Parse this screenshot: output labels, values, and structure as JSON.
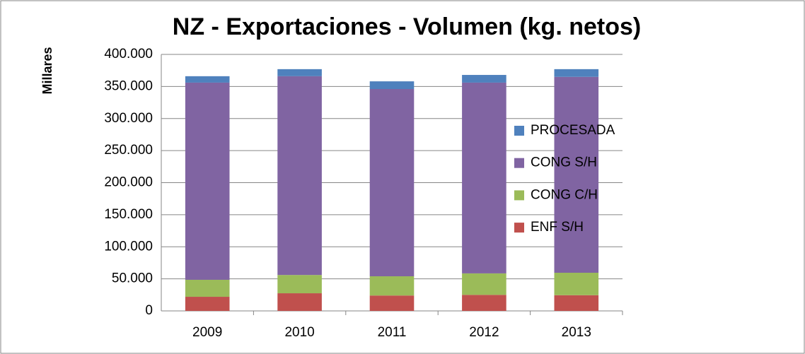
{
  "chart_data": {
    "type": "stacked_bar",
    "title": "NZ - Exportaciones - Volumen (kg. netos)",
    "y_axis_label": "Millares",
    "categories": [
      "2009",
      "2010",
      "2011",
      "2012",
      "2013"
    ],
    "series": [
      {
        "name": "ENF S/H",
        "color": "#c0504d",
        "values": [
          22000,
          27500,
          24000,
          25000,
          24500
        ]
      },
      {
        "name": "CONG C/H",
        "color": "#9bbb59",
        "values": [
          26500,
          28500,
          30000,
          33500,
          35000
        ]
      },
      {
        "name": "CONG S/H",
        "color": "#8064a2",
        "values": [
          307500,
          310000,
          292000,
          297500,
          305500
        ]
      },
      {
        "name": "PROCESADA",
        "color": "#4f81bd",
        "values": [
          10000,
          11000,
          12000,
          12000,
          12000
        ]
      }
    ],
    "ylim": [
      0,
      400000
    ],
    "yticks": [
      0,
      {
        "value": 50000,
        "label": "50.000"
      },
      {
        "value": 100000,
        "label": "100.000"
      },
      {
        "value": 150000,
        "label": "150.000"
      },
      {
        "value": 200000,
        "label": "200.000"
      },
      {
        "value": 250000,
        "label": "250.000"
      },
      {
        "value": 300000,
        "label": "300.000"
      },
      {
        "value": 350000,
        "label": "350.000"
      },
      {
        "value": 400000,
        "label": "400.000"
      }
    ],
    "grid": true,
    "legend": "right"
  }
}
